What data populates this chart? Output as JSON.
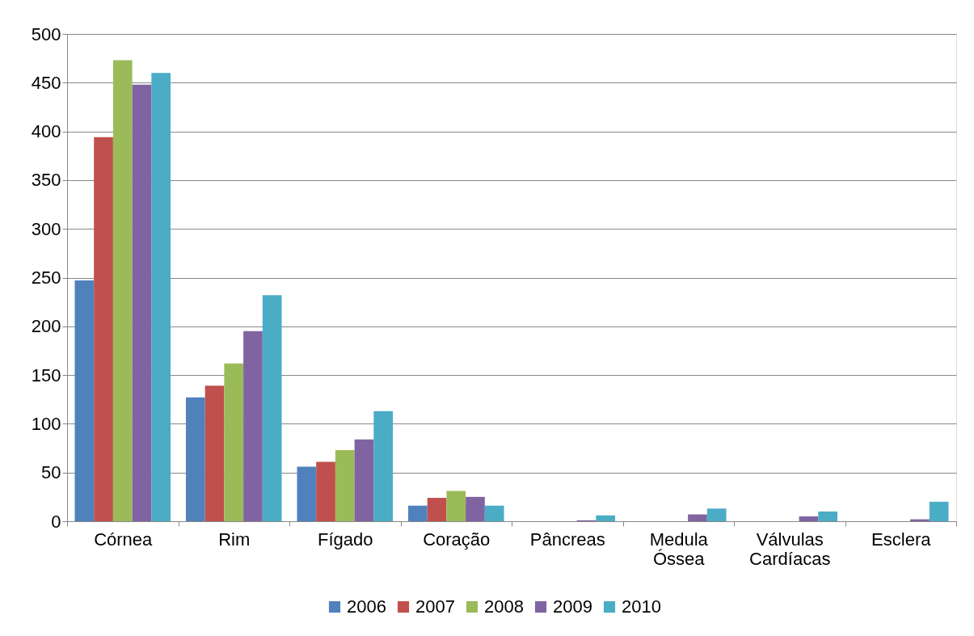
{
  "chart_data": {
    "type": "bar",
    "categories": [
      "Córnea",
      "Rim",
      "Fígado",
      "Coração",
      "Pâncreas",
      "Medula Óssea",
      "Válvulas Cardíacas",
      "Esclera"
    ],
    "series": [
      {
        "name": "2006",
        "color": "#4f81bd",
        "values": [
          247,
          127,
          56,
          16,
          0,
          0,
          0,
          0
        ]
      },
      {
        "name": "2007",
        "color": "#c0504d",
        "values": [
          394,
          139,
          61,
          24,
          0,
          0,
          0,
          0
        ]
      },
      {
        "name": "2008",
        "color": "#9bbb59",
        "values": [
          473,
          162,
          73,
          31,
          0,
          0,
          0,
          0
        ]
      },
      {
        "name": "2009",
        "color": "#8064a2",
        "values": [
          448,
          195,
          84,
          25,
          1,
          7,
          5,
          2
        ]
      },
      {
        "name": "2010",
        "color": "#4bacc6",
        "values": [
          460,
          232,
          113,
          16,
          6,
          13,
          10,
          20
        ]
      }
    ],
    "ylim": [
      0,
      500
    ],
    "yticks": [
      0,
      50,
      100,
      150,
      200,
      250,
      300,
      350,
      400,
      450,
      500
    ],
    "grid": "y",
    "legend": "bottom"
  }
}
